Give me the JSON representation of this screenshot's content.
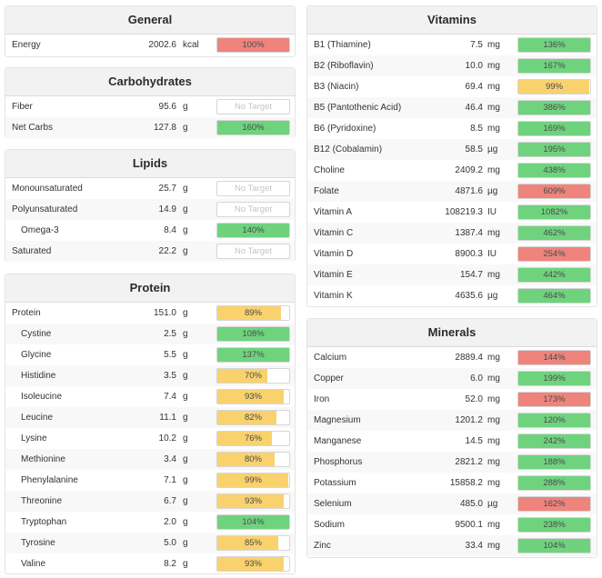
{
  "colors": {
    "green": "#6fd37e",
    "yellow": "#f9d26e",
    "red": "#ee847c"
  },
  "general": {
    "title": "General",
    "rows": [
      {
        "name": "Energy",
        "amount": "2002.6",
        "unit": "kcal",
        "pct": 100,
        "label": "100%",
        "color": "red"
      }
    ]
  },
  "carbohydrates": {
    "title": "Carbohydrates",
    "rows": [
      {
        "name": "Fiber",
        "amount": "95.6",
        "unit": "g",
        "pct": null,
        "label": "No Target",
        "color": ""
      },
      {
        "name": "Net Carbs",
        "amount": "127.8",
        "unit": "g",
        "pct": 100,
        "label": "160%",
        "color": "green"
      }
    ]
  },
  "lipids": {
    "title": "Lipids",
    "rows": [
      {
        "name": "Monounsaturated",
        "amount": "25.7",
        "unit": "g",
        "pct": null,
        "label": "No Target",
        "color": ""
      },
      {
        "name": "Polyunsaturated",
        "amount": "14.9",
        "unit": "g",
        "pct": null,
        "label": "No Target",
        "color": ""
      },
      {
        "name": "Omega-3",
        "amount": "8.4",
        "unit": "g",
        "pct": 100,
        "label": "140%",
        "color": "green",
        "indent": true
      },
      {
        "name": "Saturated",
        "amount": "22.2",
        "unit": "g",
        "pct": null,
        "label": "No Target",
        "color": ""
      }
    ]
  },
  "protein": {
    "title": "Protein",
    "rows": [
      {
        "name": "Protein",
        "amount": "151.0",
        "unit": "g",
        "pct": 89,
        "label": "89%",
        "color": "yellow"
      },
      {
        "name": "Cystine",
        "amount": "2.5",
        "unit": "g",
        "pct": 100,
        "label": "108%",
        "color": "green",
        "indent": true
      },
      {
        "name": "Glycine",
        "amount": "5.5",
        "unit": "g",
        "pct": 100,
        "label": "137%",
        "color": "green",
        "indent": true
      },
      {
        "name": "Histidine",
        "amount": "3.5",
        "unit": "g",
        "pct": 70,
        "label": "70%",
        "color": "yellow",
        "indent": true
      },
      {
        "name": "Isoleucine",
        "amount": "7.4",
        "unit": "g",
        "pct": 93,
        "label": "93%",
        "color": "yellow",
        "indent": true
      },
      {
        "name": "Leucine",
        "amount": "11.1",
        "unit": "g",
        "pct": 82,
        "label": "82%",
        "color": "yellow",
        "indent": true
      },
      {
        "name": "Lysine",
        "amount": "10.2",
        "unit": "g",
        "pct": 76,
        "label": "76%",
        "color": "yellow",
        "indent": true
      },
      {
        "name": "Methionine",
        "amount": "3.4",
        "unit": "g",
        "pct": 80,
        "label": "80%",
        "color": "yellow",
        "indent": true
      },
      {
        "name": "Phenylalanine",
        "amount": "7.1",
        "unit": "g",
        "pct": 99,
        "label": "99%",
        "color": "yellow",
        "indent": true
      },
      {
        "name": "Threonine",
        "amount": "6.7",
        "unit": "g",
        "pct": 93,
        "label": "93%",
        "color": "yellow",
        "indent": true
      },
      {
        "name": "Tryptophan",
        "amount": "2.0",
        "unit": "g",
        "pct": 100,
        "label": "104%",
        "color": "green",
        "indent": true
      },
      {
        "name": "Tyrosine",
        "amount": "5.0",
        "unit": "g",
        "pct": 85,
        "label": "85%",
        "color": "yellow",
        "indent": true
      },
      {
        "name": "Valine",
        "amount": "8.2",
        "unit": "g",
        "pct": 93,
        "label": "93%",
        "color": "yellow",
        "indent": true
      }
    ]
  },
  "vitamins": {
    "title": "Vitamins",
    "rows": [
      {
        "name": "B1 (Thiamine)",
        "amount": "7.5",
        "unit": "mg",
        "pct": 100,
        "label": "136%",
        "color": "green"
      },
      {
        "name": "B2 (Riboflavin)",
        "amount": "10.0",
        "unit": "mg",
        "pct": 100,
        "label": "167%",
        "color": "green"
      },
      {
        "name": "B3 (Niacin)",
        "amount": "69.4",
        "unit": "mg",
        "pct": 99,
        "label": "99%",
        "color": "yellow"
      },
      {
        "name": "B5 (Pantothenic Acid)",
        "amount": "46.4",
        "unit": "mg",
        "pct": 100,
        "label": "386%",
        "color": "green"
      },
      {
        "name": "B6 (Pyridoxine)",
        "amount": "8.5",
        "unit": "mg",
        "pct": 100,
        "label": "169%",
        "color": "green"
      },
      {
        "name": "B12 (Cobalamin)",
        "amount": "58.5",
        "unit": "µg",
        "pct": 100,
        "label": "195%",
        "color": "green"
      },
      {
        "name": "Choline",
        "amount": "2409.2",
        "unit": "mg",
        "pct": 100,
        "label": "438%",
        "color": "green"
      },
      {
        "name": "Folate",
        "amount": "4871.6",
        "unit": "µg",
        "pct": 100,
        "label": "609%",
        "color": "red"
      },
      {
        "name": "Vitamin A",
        "amount": "108219.3",
        "unit": "IU",
        "pct": 100,
        "label": "1082%",
        "color": "green"
      },
      {
        "name": "Vitamin C",
        "amount": "1387.4",
        "unit": "mg",
        "pct": 100,
        "label": "462%",
        "color": "green"
      },
      {
        "name": "Vitamin D",
        "amount": "8900.3",
        "unit": "IU",
        "pct": 100,
        "label": "254%",
        "color": "red"
      },
      {
        "name": "Vitamin E",
        "amount": "154.7",
        "unit": "mg",
        "pct": 100,
        "label": "442%",
        "color": "green"
      },
      {
        "name": "Vitamin K",
        "amount": "4635.6",
        "unit": "µg",
        "pct": 100,
        "label": "464%",
        "color": "green"
      }
    ]
  },
  "minerals": {
    "title": "Minerals",
    "rows": [
      {
        "name": "Calcium",
        "amount": "2889.4",
        "unit": "mg",
        "pct": 100,
        "label": "144%",
        "color": "red"
      },
      {
        "name": "Copper",
        "amount": "6.0",
        "unit": "mg",
        "pct": 100,
        "label": "199%",
        "color": "green"
      },
      {
        "name": "Iron",
        "amount": "52.0",
        "unit": "mg",
        "pct": 100,
        "label": "173%",
        "color": "red"
      },
      {
        "name": "Magnesium",
        "amount": "1201.2",
        "unit": "mg",
        "pct": 100,
        "label": "120%",
        "color": "green"
      },
      {
        "name": "Manganese",
        "amount": "14.5",
        "unit": "mg",
        "pct": 100,
        "label": "242%",
        "color": "green"
      },
      {
        "name": "Phosphorus",
        "amount": "2821.2",
        "unit": "mg",
        "pct": 100,
        "label": "188%",
        "color": "green"
      },
      {
        "name": "Potassium",
        "amount": "15858.2",
        "unit": "mg",
        "pct": 100,
        "label": "288%",
        "color": "green"
      },
      {
        "name": "Selenium",
        "amount": "485.0",
        "unit": "µg",
        "pct": 100,
        "label": "162%",
        "color": "red"
      },
      {
        "name": "Sodium",
        "amount": "9500.1",
        "unit": "mg",
        "pct": 100,
        "label": "238%",
        "color": "green"
      },
      {
        "name": "Zinc",
        "amount": "33.4",
        "unit": "mg",
        "pct": 100,
        "label": "104%",
        "color": "green"
      }
    ]
  }
}
